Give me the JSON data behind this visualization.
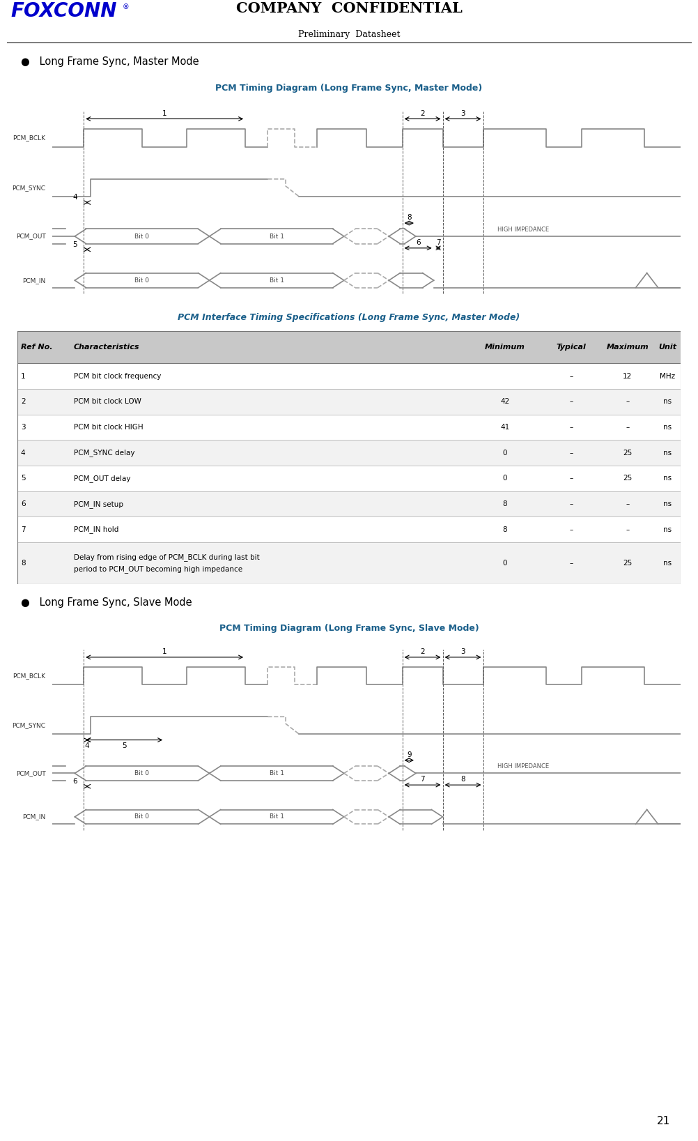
{
  "page_title1": "COMPANY  CONFIDENTIAL",
  "page_title2": "Preliminary  Datasheet",
  "page_number": "21",
  "bullet1": "Long Frame Sync, Master Mode",
  "bullet2": "Long Frame Sync, Slave Mode",
  "diagram1_title": "PCM Timing Diagram (Long Frame Sync, Master Mode)",
  "diagram2_title": "PCM Timing Diagram (Long Frame Sync, Slave Mode)",
  "table_title": "PCM Interface Timing Specifications (Long Frame Sync, Master Mode)",
  "table_header": [
    "Ref No.",
    "Characteristics",
    "Minimum",
    "Typical",
    "Maximum",
    "Unit"
  ],
  "table_rows": [
    [
      "1",
      "PCM bit clock frequency",
      "",
      "–",
      "12",
      "MHz"
    ],
    [
      "2",
      "PCM bit clock LOW",
      "42",
      "–",
      "–",
      "ns"
    ],
    [
      "3",
      "PCM bit clock HIGH",
      "41",
      "–",
      "–",
      "ns"
    ],
    [
      "4",
      "PCM_SYNC delay",
      "0",
      "–",
      "25",
      "ns"
    ],
    [
      "5",
      "PCM_OUT delay",
      "0",
      "–",
      "25",
      "ns"
    ],
    [
      "6",
      "PCM_IN setup",
      "8",
      "–",
      "–",
      "ns"
    ],
    [
      "7",
      "PCM_IN hold",
      "8",
      "–",
      "–",
      "ns"
    ],
    [
      "8",
      "Delay from rising edge of PCM_BCLK during last bit\nperiod to PCM_OUT becoming high impedance",
      "0",
      "–",
      "25",
      "ns"
    ]
  ],
  "bg_color": "#ffffff",
  "signal_color": "#888888",
  "foxconn_color": "#0000cc",
  "diagram_title_color": "#1a5f8a",
  "header_bg": "#cccccc"
}
